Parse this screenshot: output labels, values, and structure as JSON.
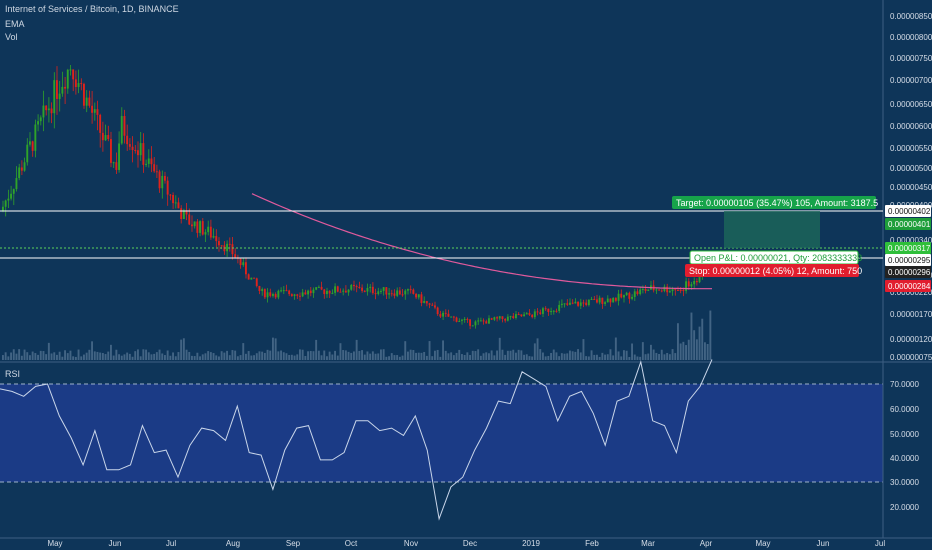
{
  "header": {
    "title": "Internet of Services / Bitcoin, 1D, BINANCE",
    "indicators": [
      "EMA",
      "Vol"
    ]
  },
  "rsi_label": "RSI",
  "colors": {
    "background": "#0e3559",
    "rsi_band": "#1b3b86",
    "up": "#2fa329",
    "down": "#e0231b",
    "ema": "#e05a9c",
    "rsi_line": "#c9d6ea",
    "target": "#16a34a",
    "stop": "#e11d2e"
  },
  "price_axis": {
    "ticks": [
      "0.00000075",
      "0.00000120",
      "0.00000170",
      "0.00000220",
      "0.00000270",
      "0.00000340",
      "0.00000400",
      "0.00000450",
      "0.00000500",
      "0.00000550",
      "0.00000600",
      "0.00000650",
      "0.00000700",
      "0.00000750",
      "0.00000800",
      "0.00000850"
    ],
    "badges": [
      {
        "text": "0.00000402",
        "bg": "#ffffff",
        "fg": "#111111"
      },
      {
        "text": "0.00000401",
        "bg": "#1e9e3a",
        "fg": "#ffffff"
      },
      {
        "text": "0.00000317",
        "bg": "#2fbf3a",
        "fg": "#ffffff"
      },
      {
        "text": "0.00000295",
        "bg": "#ffffff",
        "fg": "#111111"
      },
      {
        "text": "0.00000296",
        "bg": "#222222",
        "fg": "#ffffff"
      },
      {
        "text": "0.00000284",
        "bg": "#e11d2e",
        "fg": "#ffffff"
      }
    ]
  },
  "rsi_axis": {
    "ticks": [
      "70.0000",
      "60.0000",
      "50.0000",
      "40.0000",
      "30.0000",
      "20.0000"
    ],
    "upper": 70,
    "lower": 30
  },
  "time_axis": {
    "labels": [
      "May",
      "Jun",
      "Jul",
      "Aug",
      "Sep",
      "Oct",
      "Nov",
      "Dec",
      "2019",
      "Feb",
      "Mar",
      "Apr",
      "May",
      "Jun",
      "Jul"
    ]
  },
  "position": {
    "target_label": "Target: 0.00000105 (35.47%) 105, Amount: 3187.5",
    "pnl_label": "Open P&L: 0.00000021, Qty: 2083333333",
    "stop_label": "Stop: 0.00000012 (4.05%) 12, Amount: 750"
  },
  "chart_data": {
    "type": "candlestick",
    "title": "Internet of Services / Bitcoin, 1D, BINANCE",
    "interval": "1D",
    "exchange": "BINANCE",
    "price_series": {
      "dates": [
        "Apr",
        "May",
        "mid-May",
        "Jun",
        "mid-Jun",
        "Jul",
        "mid-Jul",
        "late-Jul",
        "Aug",
        "mid-Aug",
        "Sep",
        "Oct",
        "Nov",
        "mid-Nov",
        "Dec",
        "mid-Dec",
        "2019",
        "mid-Jan",
        "Feb",
        "mid-Feb",
        "Mar",
        "mid-Mar",
        "late-Mar",
        "Apr"
      ],
      "close": [
        4e-06,
        6.8e-06,
        7.4e-06,
        5e-06,
        6e-06,
        4.3e-06,
        3.8e-06,
        3.4e-06,
        3e-06,
        2.1e-06,
        2.1e-06,
        2.2e-06,
        2.1e-06,
        1.6e-06,
        1.4e-06,
        1.5e-06,
        1.6e-06,
        1.8e-06,
        1.9e-06,
        2e-06,
        2.2e-06,
        2.2e-06,
        2.4e-06,
        3.2e-06
      ]
    },
    "ema": {
      "start": "Aug",
      "start_value": 4.4e-06,
      "end": "Apr",
      "end_value": 2.2e-06
    },
    "rsi": {
      "values": [
        65,
        70,
        62,
        72,
        67,
        60,
        45,
        40,
        48,
        38,
        32,
        40,
        50,
        45,
        40,
        35,
        42,
        55,
        48,
        50,
        58,
        45,
        38,
        30,
        40,
        55,
        50,
        42,
        36,
        45,
        52,
        58,
        48,
        55,
        46,
        60,
        40,
        18,
        25,
        35,
        40,
        55,
        60,
        65,
        72,
        75,
        66,
        58,
        62,
        70,
        55,
        48,
        60,
        68,
        76,
        58,
        50,
        45,
        60,
        72,
        78
      ]
    },
    "ylim": [
      5e-07,
      8.8e-06
    ]
  }
}
